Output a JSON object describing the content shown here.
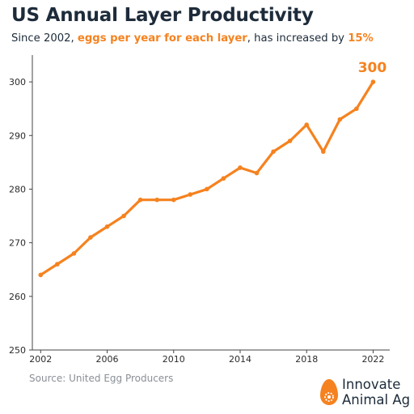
{
  "title": "US Annual Layer Productivity",
  "subtitle": {
    "part1": "Since 2002, ",
    "highlight1": "eggs per year for each layer",
    "part2": ", has increased by ",
    "highlight2": "15%"
  },
  "source": "Source: United Egg Producers",
  "brand": {
    "line1": "Innovate",
    "line2": "Animal Ag",
    "logo_icon": "egg-icon"
  },
  "colors": {
    "accent": "#f5821f",
    "text": "#1d2b3a",
    "axis": "#444444",
    "muted": "#8a8f96"
  },
  "chart_data": {
    "type": "line",
    "x": [
      2002,
      2003,
      2004,
      2005,
      2006,
      2007,
      2008,
      2009,
      2010,
      2011,
      2012,
      2013,
      2014,
      2015,
      2016,
      2017,
      2018,
      2019,
      2020,
      2021,
      2022
    ],
    "series": [
      {
        "values": [
          264,
          266,
          268,
          271,
          273,
          275,
          278,
          278,
          278,
          279,
          280,
          282,
          284,
          283,
          287,
          289,
          292,
          287,
          293,
          295,
          300
        ]
      }
    ],
    "end_label": "300",
    "xlim": [
      2001.5,
      2023
    ],
    "ylim": [
      250,
      305
    ],
    "x_ticks": [
      2002,
      2006,
      2010,
      2014,
      2018,
      2022
    ],
    "y_ticks": [
      250,
      260,
      270,
      280,
      290,
      300
    ],
    "grid": false
  }
}
